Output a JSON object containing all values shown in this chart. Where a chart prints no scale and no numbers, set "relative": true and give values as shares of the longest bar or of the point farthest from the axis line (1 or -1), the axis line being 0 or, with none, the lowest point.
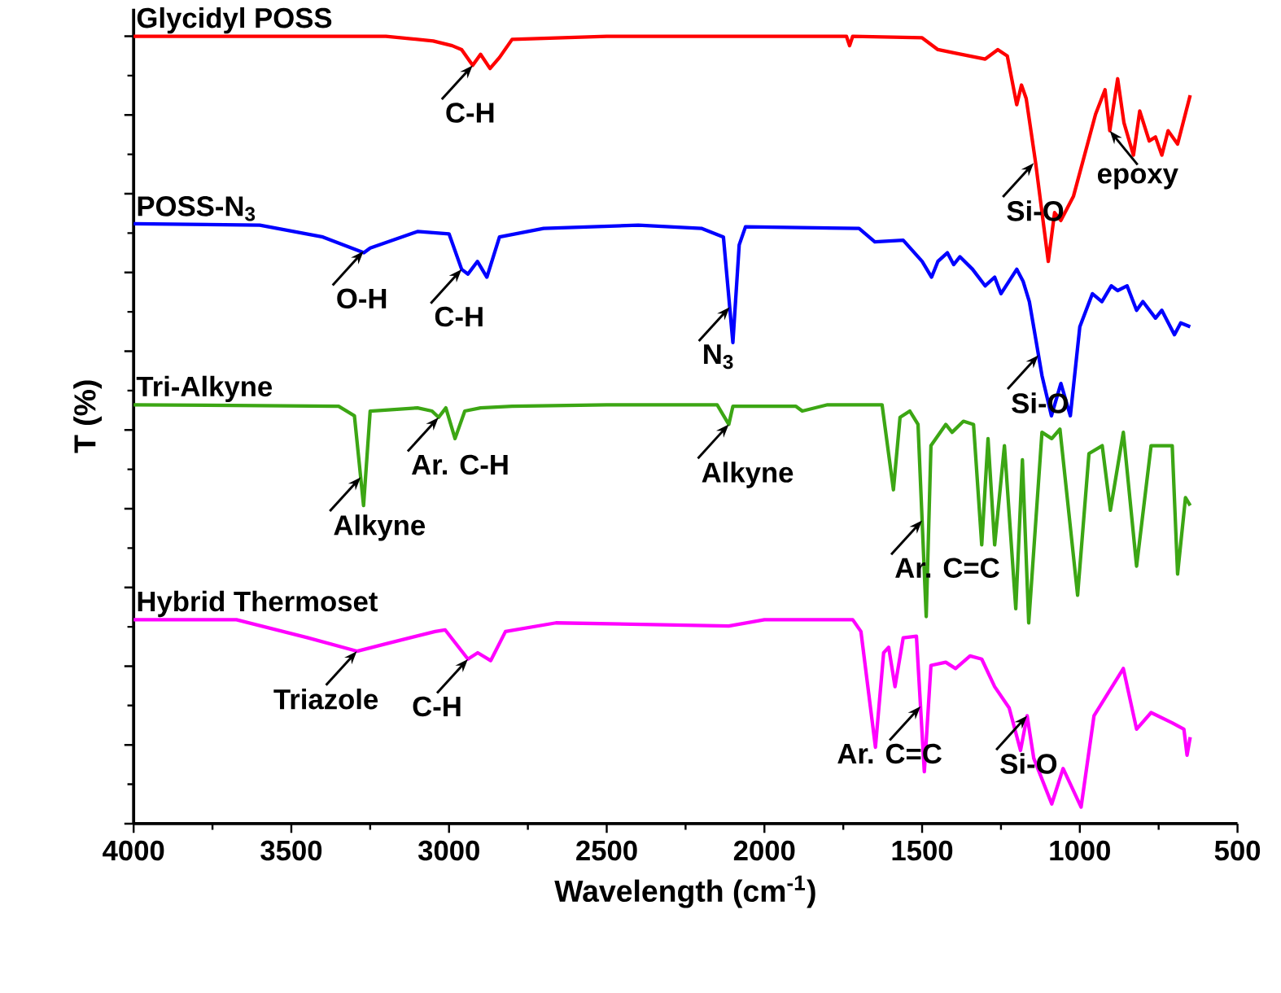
{
  "chart_data": {
    "type": "line",
    "relative": true,
    "xlabel": "Wavelength (cm$^{-1}$)",
    "ylabel": "T (%)",
    "xlim": [
      4000,
      500
    ],
    "xticks": [
      4000,
      3500,
      3000,
      2500,
      2000,
      1500,
      1000,
      500
    ],
    "legend": false,
    "grid": false,
    "line_style": "solid",
    "marker": "none",
    "series": [
      {
        "name": "Glycidyl POSS",
        "color": "#ff0000",
        "x": [
          4000,
          3200,
          3050,
          2990,
          2960,
          2925,
          2900,
          2870,
          2840,
          2800,
          2500,
          1740,
          1730,
          1720,
          1500,
          1450,
          1400,
          1300,
          1260,
          1230,
          1200,
          1185,
          1170,
          1140,
          1100,
          1080,
          1060,
          1020,
          950,
          920,
          905,
          880,
          860,
          830,
          810,
          780,
          760,
          740,
          720,
          690,
          650
        ],
        "values": [
          1.0,
          1.0,
          0.994,
          0.988,
          0.983,
          0.963,
          0.977,
          0.959,
          0.973,
          0.996,
          1.0,
          1.0,
          0.988,
          1.0,
          0.998,
          0.983,
          0.979,
          0.971,
          0.983,
          0.975,
          0.913,
          0.938,
          0.921,
          0.839,
          0.714,
          0.776,
          0.766,
          0.797,
          0.901,
          0.932,
          0.88,
          0.946,
          0.89,
          0.849,
          0.905,
          0.867,
          0.872,
          0.849,
          0.88,
          0.863,
          0.925
        ]
      },
      {
        "name": "POSS-N$_{3}$",
        "color": "#0000ff",
        "x": [
          4000,
          3600,
          3400,
          3270,
          3250,
          3100,
          3000,
          2960,
          2940,
          2910,
          2880,
          2840,
          2700,
          2400,
          2200,
          2130,
          2100,
          2080,
          2060,
          1700,
          1650,
          1560,
          1500,
          1470,
          1450,
          1420,
          1400,
          1380,
          1340,
          1300,
          1270,
          1250,
          1200,
          1180,
          1160,
          1120,
          1090,
          1060,
          1030,
          1000,
          960,
          930,
          900,
          880,
          850,
          820,
          800,
          760,
          740,
          700,
          680,
          650
        ],
        "values": [
          0.762,
          0.76,
          0.745,
          0.725,
          0.731,
          0.752,
          0.749,
          0.704,
          0.698,
          0.714,
          0.694,
          0.745,
          0.756,
          0.76,
          0.756,
          0.745,
          0.611,
          0.735,
          0.758,
          0.756,
          0.739,
          0.741,
          0.714,
          0.694,
          0.714,
          0.725,
          0.71,
          0.72,
          0.704,
          0.683,
          0.694,
          0.673,
          0.704,
          0.689,
          0.663,
          0.569,
          0.518,
          0.559,
          0.518,
          0.631,
          0.673,
          0.663,
          0.683,
          0.677,
          0.683,
          0.652,
          0.663,
          0.642,
          0.652,
          0.621,
          0.636,
          0.631
        ]
      },
      {
        "name": "Tri-Alkyne",
        "color": "#3ca614",
        "x": [
          4000,
          3350,
          3300,
          3271,
          3250,
          3100,
          3054,
          3033,
          3010,
          2981,
          2950,
          2900,
          2800,
          2500,
          2150,
          2113,
          2100,
          1900,
          1880,
          1800,
          1680,
          1627,
          1591,
          1570,
          1539,
          1513,
          1487,
          1472,
          1425,
          1405,
          1369,
          1337,
          1311,
          1291,
          1270,
          1239,
          1203,
          1182,
          1162,
          1120,
          1089,
          1063,
          1007,
          971,
          929,
          903,
          862,
          820,
          774,
          707,
          690,
          665,
          650
        ],
        "values": [
          0.532,
          0.53,
          0.518,
          0.404,
          0.524,
          0.528,
          0.524,
          0.516,
          0.528,
          0.489,
          0.524,
          0.528,
          0.53,
          0.532,
          0.532,
          0.507,
          0.53,
          0.53,
          0.524,
          0.532,
          0.532,
          0.532,
          0.424,
          0.516,
          0.524,
          0.507,
          0.263,
          0.48,
          0.507,
          0.497,
          0.511,
          0.507,
          0.354,
          0.489,
          0.354,
          0.48,
          0.273,
          0.462,
          0.255,
          0.497,
          0.489,
          0.501,
          0.29,
          0.47,
          0.48,
          0.398,
          0.497,
          0.327,
          0.48,
          0.48,
          0.317,
          0.414,
          0.404
        ]
      },
      {
        "name": "Hybrid Thermoset",
        "color": "#ff00ff",
        "x": [
          4000,
          3674,
          3447,
          3292,
          3204,
          3044,
          3012,
          2940,
          2909,
          2868,
          2821,
          2661,
          2113,
          2000,
          1720,
          1694,
          1648,
          1622,
          1606,
          1586,
          1560,
          1518,
          1493,
          1472,
          1425,
          1394,
          1348,
          1311,
          1270,
          1224,
          1188,
          1167,
          1146,
          1089,
          1053,
          996,
          955,
          862,
          820,
          774,
          707,
          670,
          660,
          650
        ],
        "values": [
          0.259,
          0.259,
          0.236,
          0.219,
          0.228,
          0.244,
          0.246,
          0.209,
          0.217,
          0.207,
          0.244,
          0.255,
          0.251,
          0.259,
          0.259,
          0.244,
          0.097,
          0.217,
          0.224,
          0.174,
          0.236,
          0.238,
          0.066,
          0.201,
          0.205,
          0.197,
          0.213,
          0.209,
          0.174,
          0.147,
          0.093,
          0.137,
          0.083,
          0.025,
          0.07,
          0.021,
          0.137,
          0.197,
          0.12,
          0.141,
          0.128,
          0.12,
          0.087,
          0.11
        ]
      }
    ],
    "annotations": [
      {
        "text": "C-H",
        "x": 2925,
        "y": 0.963
      },
      {
        "text": "Si-O",
        "x": 1146,
        "y": 0.839
      },
      {
        "text": "epoxy",
        "x": 905,
        "y": 0.88
      },
      {
        "text": "O-H",
        "x": 3271,
        "y": 0.727
      },
      {
        "text": "C-H",
        "x": 2960,
        "y": 0.704
      },
      {
        "text": "N$_{3}$",
        "x": 2110,
        "y": 0.656
      },
      {
        "text": "Si-O",
        "x": 1131,
        "y": 0.595
      },
      {
        "text": "Alkyne",
        "x": 3280,
        "y": 0.44
      },
      {
        "text": "Ar. C-H",
        "x": 3033,
        "y": 0.516
      },
      {
        "text": "Alkyne",
        "x": 2113,
        "y": 0.507
      },
      {
        "text": "Ar. C=C",
        "x": 1500,
        "y": 0.385
      },
      {
        "text": "Triazole",
        "x": 3292,
        "y": 0.219
      },
      {
        "text": "C-H",
        "x": 2940,
        "y": 0.209
      },
      {
        "text": "Ar. C=C",
        "x": 1505,
        "y": 0.149
      },
      {
        "text": "Si-O",
        "x": 1167,
        "y": 0.137
      }
    ]
  }
}
